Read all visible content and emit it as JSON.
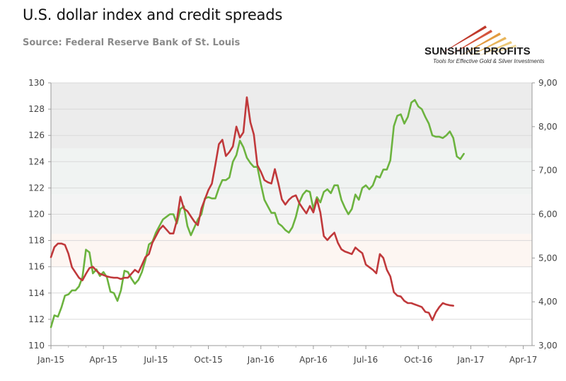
{
  "chart_data": {
    "type": "line",
    "title": "U.S. dollar index and credit spreads",
    "subtitle": "Source: Federal Reserve Bank of St. Louis",
    "x_ticks": [
      "Jan-15",
      "Apr-15",
      "Jul-15",
      "Oct-15",
      "Jan-16",
      "Apr-16",
      "Jul-16",
      "Oct-16",
      "Jan-17",
      "Apr-17"
    ],
    "y_left_ticks": [
      "110",
      "112",
      "114",
      "116",
      "118",
      "120",
      "122",
      "124",
      "126",
      "128",
      "130"
    ],
    "y_right_ticks": [
      "3,00",
      "4,00",
      "5,00",
      "6,00",
      "7,00",
      "8,00",
      "9,00"
    ],
    "ylim_left": [
      110,
      130
    ],
    "ylim_right": [
      3,
      9
    ],
    "x_range_months": [
      0,
      27.5
    ],
    "grid": true,
    "legend": "none",
    "series": [
      {
        "axis": "left",
        "color": "#6cb33f",
        "points": [
          [
            0.0,
            111.4
          ],
          [
            0.2,
            112.3
          ],
          [
            0.4,
            112.2
          ],
          [
            0.6,
            112.9
          ],
          [
            0.8,
            113.8
          ],
          [
            1.0,
            113.9
          ],
          [
            1.2,
            114.2
          ],
          [
            1.4,
            114.2
          ],
          [
            1.6,
            114.5
          ],
          [
            1.8,
            115.2
          ],
          [
            2.0,
            117.3
          ],
          [
            2.2,
            117.1
          ],
          [
            2.4,
            115.5
          ],
          [
            2.6,
            115.8
          ],
          [
            2.8,
            115.3
          ],
          [
            3.0,
            115.6
          ],
          [
            3.2,
            115.2
          ],
          [
            3.4,
            114.1
          ],
          [
            3.6,
            114.0
          ],
          [
            3.8,
            113.4
          ],
          [
            4.0,
            114.2
          ],
          [
            4.2,
            115.7
          ],
          [
            4.4,
            115.6
          ],
          [
            4.6,
            115.1
          ],
          [
            4.8,
            114.7
          ],
          [
            5.0,
            115.0
          ],
          [
            5.2,
            115.6
          ],
          [
            5.4,
            116.5
          ],
          [
            5.6,
            117.7
          ],
          [
            5.8,
            117.9
          ],
          [
            6.0,
            118.6
          ],
          [
            6.2,
            119.1
          ],
          [
            6.4,
            119.6
          ],
          [
            6.6,
            119.8
          ],
          [
            6.8,
            120.0
          ],
          [
            7.0,
            120.0
          ],
          [
            7.2,
            119.3
          ],
          [
            7.4,
            120.4
          ],
          [
            7.6,
            120.6
          ],
          [
            7.8,
            119.1
          ],
          [
            8.0,
            118.4
          ],
          [
            8.2,
            119.0
          ],
          [
            8.4,
            119.6
          ],
          [
            8.6,
            120.0
          ],
          [
            8.8,
            121.2
          ],
          [
            9.0,
            121.3
          ],
          [
            9.2,
            121.2
          ],
          [
            9.4,
            121.2
          ],
          [
            9.6,
            122.0
          ],
          [
            9.8,
            122.6
          ],
          [
            10.0,
            122.6
          ],
          [
            10.2,
            122.8
          ],
          [
            10.4,
            124.0
          ],
          [
            10.6,
            124.5
          ],
          [
            10.8,
            125.6
          ],
          [
            11.0,
            125.1
          ],
          [
            11.2,
            124.3
          ],
          [
            11.4,
            123.9
          ],
          [
            11.6,
            123.6
          ],
          [
            11.8,
            123.6
          ],
          [
            12.0,
            122.3
          ],
          [
            12.2,
            121.1
          ],
          [
            12.4,
            120.6
          ],
          [
            12.6,
            120.1
          ],
          [
            12.8,
            120.1
          ],
          [
            13.0,
            119.3
          ],
          [
            13.2,
            119.1
          ],
          [
            13.4,
            118.8
          ],
          [
            13.6,
            118.6
          ],
          [
            13.8,
            119.0
          ],
          [
            14.0,
            119.8
          ],
          [
            14.2,
            120.9
          ],
          [
            14.4,
            121.5
          ],
          [
            14.6,
            121.8
          ],
          [
            14.8,
            121.7
          ],
          [
            15.0,
            120.4
          ],
          [
            15.2,
            121.3
          ],
          [
            15.4,
            120.9
          ],
          [
            15.6,
            121.7
          ],
          [
            15.8,
            121.9
          ],
          [
            16.0,
            121.6
          ],
          [
            16.2,
            122.2
          ],
          [
            16.4,
            122.2
          ],
          [
            16.6,
            121.1
          ],
          [
            16.8,
            120.5
          ],
          [
            17.0,
            120.0
          ],
          [
            17.2,
            120.4
          ],
          [
            17.4,
            121.5
          ],
          [
            17.6,
            121.1
          ],
          [
            17.8,
            122.0
          ],
          [
            18.0,
            122.2
          ],
          [
            18.2,
            121.9
          ],
          [
            18.4,
            122.2
          ],
          [
            18.6,
            122.9
          ],
          [
            18.8,
            122.8
          ],
          [
            19.0,
            123.4
          ],
          [
            19.2,
            123.4
          ],
          [
            19.4,
            124.1
          ],
          [
            19.6,
            126.7
          ],
          [
            19.8,
            127.5
          ],
          [
            20.0,
            127.6
          ],
          [
            20.2,
            126.9
          ],
          [
            20.4,
            127.4
          ],
          [
            20.6,
            128.5
          ],
          [
            20.8,
            128.7
          ],
          [
            21.0,
            128.2
          ],
          [
            21.2,
            128.0
          ],
          [
            21.4,
            127.4
          ],
          [
            21.6,
            126.9
          ],
          [
            21.8,
            126.0
          ],
          [
            22.0,
            125.9
          ],
          [
            22.2,
            125.9
          ],
          [
            22.4,
            125.8
          ],
          [
            22.6,
            126.0
          ],
          [
            22.8,
            126.3
          ],
          [
            23.0,
            125.8
          ],
          [
            23.2,
            124.4
          ],
          [
            23.4,
            124.2
          ],
          [
            23.6,
            124.6
          ]
        ]
      },
      {
        "axis": "right",
        "color": "#c0393b",
        "points": [
          [
            0.0,
            5.02
          ],
          [
            0.2,
            5.25
          ],
          [
            0.4,
            5.33
          ],
          [
            0.6,
            5.33
          ],
          [
            0.8,
            5.3
          ],
          [
            1.0,
            5.1
          ],
          [
            1.2,
            4.79
          ],
          [
            1.4,
            4.67
          ],
          [
            1.6,
            4.55
          ],
          [
            1.8,
            4.49
          ],
          [
            2.0,
            4.64
          ],
          [
            2.2,
            4.77
          ],
          [
            2.4,
            4.8
          ],
          [
            2.6,
            4.71
          ],
          [
            2.8,
            4.64
          ],
          [
            3.0,
            4.61
          ],
          [
            3.2,
            4.58
          ],
          [
            3.4,
            4.56
          ],
          [
            3.6,
            4.55
          ],
          [
            3.8,
            4.55
          ],
          [
            4.0,
            4.52
          ],
          [
            4.2,
            4.55
          ],
          [
            4.4,
            4.55
          ],
          [
            4.6,
            4.64
          ],
          [
            4.8,
            4.73
          ],
          [
            5.0,
            4.67
          ],
          [
            5.2,
            4.84
          ],
          [
            5.4,
            5.02
          ],
          [
            5.6,
            5.09
          ],
          [
            5.8,
            5.35
          ],
          [
            6.0,
            5.5
          ],
          [
            6.2,
            5.65
          ],
          [
            6.4,
            5.74
          ],
          [
            6.6,
            5.65
          ],
          [
            6.8,
            5.56
          ],
          [
            7.0,
            5.56
          ],
          [
            7.2,
            5.86
          ],
          [
            7.4,
            6.4
          ],
          [
            7.6,
            6.13
          ],
          [
            7.8,
            6.07
          ],
          [
            8.0,
            5.95
          ],
          [
            8.2,
            5.83
          ],
          [
            8.4,
            5.75
          ],
          [
            8.6,
            6.13
          ],
          [
            8.8,
            6.34
          ],
          [
            9.0,
            6.55
          ],
          [
            9.2,
            6.7
          ],
          [
            9.4,
            7.13
          ],
          [
            9.6,
            7.6
          ],
          [
            9.8,
            7.7
          ],
          [
            10.0,
            7.33
          ],
          [
            10.2,
            7.42
          ],
          [
            10.4,
            7.55
          ],
          [
            10.6,
            8.0
          ],
          [
            10.8,
            7.75
          ],
          [
            11.0,
            7.87
          ],
          [
            11.2,
            8.67
          ],
          [
            11.4,
            8.1
          ],
          [
            11.6,
            7.82
          ],
          [
            11.8,
            7.12
          ],
          [
            12.0,
            6.97
          ],
          [
            12.2,
            6.78
          ],
          [
            12.4,
            6.73
          ],
          [
            12.6,
            6.7
          ],
          [
            12.8,
            7.03
          ],
          [
            13.0,
            6.7
          ],
          [
            13.2,
            6.34
          ],
          [
            13.4,
            6.22
          ],
          [
            13.6,
            6.33
          ],
          [
            13.8,
            6.4
          ],
          [
            14.0,
            6.43
          ],
          [
            14.2,
            6.25
          ],
          [
            14.4,
            6.13
          ],
          [
            14.6,
            6.02
          ],
          [
            14.8,
            6.19
          ],
          [
            15.0,
            6.04
          ],
          [
            15.2,
            6.34
          ],
          [
            15.4,
            6.04
          ],
          [
            15.6,
            5.5
          ],
          [
            15.8,
            5.41
          ],
          [
            16.0,
            5.5
          ],
          [
            16.2,
            5.58
          ],
          [
            16.4,
            5.35
          ],
          [
            16.6,
            5.2
          ],
          [
            16.8,
            5.15
          ],
          [
            17.0,
            5.12
          ],
          [
            17.2,
            5.09
          ],
          [
            17.4,
            5.24
          ],
          [
            17.6,
            5.17
          ],
          [
            17.8,
            5.11
          ],
          [
            18.0,
            4.85
          ],
          [
            18.2,
            4.79
          ],
          [
            18.4,
            4.73
          ],
          [
            18.6,
            4.65
          ],
          [
            18.8,
            5.09
          ],
          [
            19.0,
            5.0
          ],
          [
            19.2,
            4.73
          ],
          [
            19.4,
            4.58
          ],
          [
            19.6,
            4.22
          ],
          [
            19.8,
            4.14
          ],
          [
            20.0,
            4.12
          ],
          [
            20.2,
            4.02
          ],
          [
            20.4,
            3.97
          ],
          [
            20.6,
            3.97
          ],
          [
            20.8,
            3.94
          ],
          [
            21.0,
            3.91
          ],
          [
            21.2,
            3.88
          ],
          [
            21.4,
            3.77
          ],
          [
            21.6,
            3.75
          ],
          [
            21.8,
            3.58
          ],
          [
            22.0,
            3.76
          ],
          [
            22.2,
            3.88
          ],
          [
            22.4,
            3.97
          ],
          [
            22.6,
            3.94
          ],
          [
            22.8,
            3.92
          ],
          [
            23.0,
            3.91
          ]
        ]
      }
    ]
  },
  "branding": {
    "name": "SUNSHINE PROFITS",
    "tagline": "Tools for Effective Gold & Silver Investments"
  }
}
